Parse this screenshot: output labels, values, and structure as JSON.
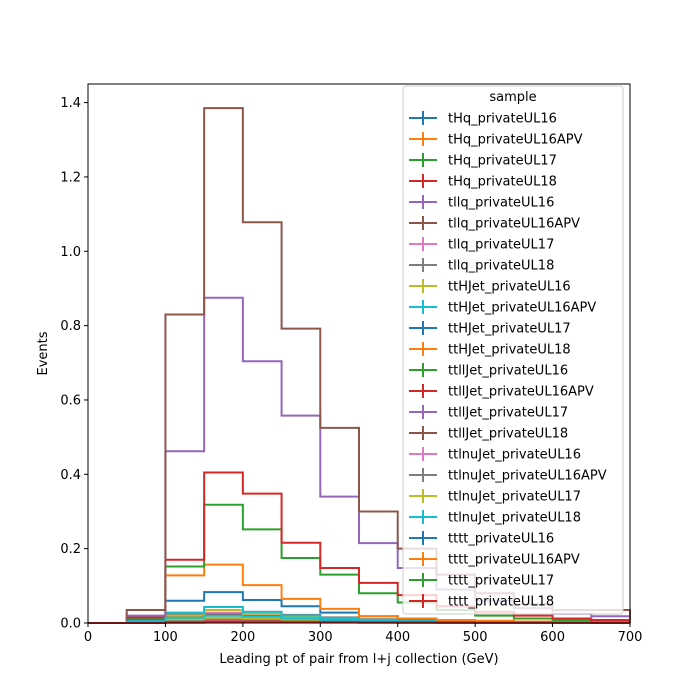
{
  "chart_data": {
    "type": "step-histogram",
    "xlabel": "Leading pt of pair from l+j collection (GeV)",
    "ylabel": "Events",
    "xlim": [
      0,
      700
    ],
    "ylim": [
      0,
      1.45
    ],
    "x_ticks": [
      "0",
      "100",
      "200",
      "300",
      "400",
      "500",
      "600",
      "700"
    ],
    "y_ticks": [
      "0.0",
      "0.2",
      "0.4",
      "0.6",
      "0.8",
      "1.0",
      "1.2",
      "1.4"
    ],
    "bin_edges": [
      0,
      50,
      100,
      150,
      200,
      250,
      300,
      350,
      400,
      450,
      500,
      550,
      600,
      650,
      700
    ],
    "legend_title": "sample",
    "legend_placement": "top-right",
    "series": [
      {
        "name": "tHq_privateUL16",
        "color": "#1f77b4",
        "values": [
          0,
          0.002,
          0.004,
          0.006,
          0.005,
          0.004,
          0.003,
          0.002,
          0.001,
          0.001,
          0.001,
          0.001,
          0,
          0
        ]
      },
      {
        "name": "tHq_privateUL16APV",
        "color": "#ff7f0e",
        "values": [
          0,
          0.002,
          0.004,
          0.006,
          0.005,
          0.004,
          0.003,
          0.002,
          0.001,
          0.001,
          0.001,
          0.001,
          0,
          0
        ]
      },
      {
        "name": "tHq_privateUL17",
        "color": "#2ca02c",
        "values": [
          0,
          0.003,
          0.006,
          0.009,
          0.008,
          0.006,
          0.004,
          0.003,
          0.002,
          0.001,
          0.001,
          0.001,
          0,
          0
        ]
      },
      {
        "name": "tHq_privateUL18",
        "color": "#d62728",
        "values": [
          0,
          0.004,
          0.008,
          0.012,
          0.01,
          0.008,
          0.006,
          0.004,
          0.003,
          0.002,
          0.001,
          0.001,
          0,
          0
        ]
      },
      {
        "name": "tllq_privateUL16",
        "color": "#9467bd",
        "values": [
          0,
          0.008,
          0.015,
          0.02,
          0.017,
          0.012,
          0.009,
          0.006,
          0.004,
          0.003,
          0.002,
          0.002,
          0.001,
          0.001
        ]
      },
      {
        "name": "tllq_privateUL16APV",
        "color": "#8c564b",
        "values": [
          0,
          0.01,
          0.018,
          0.024,
          0.02,
          0.015,
          0.01,
          0.007,
          0.005,
          0.004,
          0.003,
          0.002,
          0.001,
          0.001
        ]
      },
      {
        "name": "tllq_privateUL17",
        "color": "#e377c2",
        "values": [
          0,
          0.012,
          0.02,
          0.028,
          0.024,
          0.018,
          0.012,
          0.008,
          0.006,
          0.004,
          0.003,
          0.002,
          0.001,
          0.001
        ]
      },
      {
        "name": "tllq_privateUL18",
        "color": "#7f7f7f",
        "values": [
          0,
          0.018,
          0.025,
          0.035,
          0.03,
          0.022,
          0.015,
          0.01,
          0.008,
          0.006,
          0.004,
          0.003,
          0.002,
          0.002
        ]
      },
      {
        "name": "ttHJet_privateUL16",
        "color": "#bcbd22",
        "values": [
          0,
          0.005,
          0.02,
          0.035,
          0.025,
          0.015,
          0.01,
          0.006,
          0.004,
          0.003,
          0.002,
          0.001,
          0.001,
          0.001
        ]
      },
      {
        "name": "ttHJet_privateUL16APV",
        "color": "#17becf",
        "values": [
          0,
          0.006,
          0.028,
          0.043,
          0.03,
          0.02,
          0.013,
          0.008,
          0.005,
          0.003,
          0.002,
          0.002,
          0.001,
          0.001
        ]
      },
      {
        "name": "ttHJet_privateUL17",
        "color": "#1f77b4",
        "values": [
          0,
          0.01,
          0.06,
          0.083,
          0.062,
          0.045,
          0.028,
          0.018,
          0.011,
          0.007,
          0.005,
          0.003,
          0.002,
          0.002
        ]
      },
      {
        "name": "ttHJet_privateUL18",
        "color": "#ff7f0e",
        "values": [
          0,
          0.015,
          0.128,
          0.157,
          0.102,
          0.065,
          0.038,
          0.018,
          0.012,
          0.008,
          0.006,
          0.004,
          0.003,
          0.002
        ]
      },
      {
        "name": "ttllJet_privateUL16",
        "color": "#2ca02c",
        "values": [
          0,
          0.012,
          0.152,
          0.318,
          0.252,
          0.175,
          0.13,
          0.08,
          0.055,
          0.035,
          0.02,
          0.012,
          0.008,
          0.006
        ]
      },
      {
        "name": "ttllJet_privateUL16APV",
        "color": "#d62728",
        "values": [
          0,
          0.015,
          0.17,
          0.405,
          0.348,
          0.216,
          0.148,
          0.108,
          0.075,
          0.045,
          0.03,
          0.02,
          0.012,
          0.008
        ]
      },
      {
        "name": "ttllJet_privateUL17",
        "color": "#9467bd",
        "values": [
          0,
          0.02,
          0.462,
          0.875,
          0.704,
          0.558,
          0.34,
          0.215,
          0.148,
          0.09,
          0.06,
          0.04,
          0.025,
          0.018
        ]
      },
      {
        "name": "ttllJet_privateUL18",
        "color": "#8c564b",
        "values": [
          0,
          0.035,
          0.83,
          1.385,
          1.078,
          0.792,
          0.525,
          0.3,
          0.2,
          0.13,
          0.08,
          0.05,
          0.035,
          0.035
        ]
      },
      {
        "name": "ttlnuJet_privateUL16",
        "color": "#e377c2",
        "values": [
          0,
          0.002,
          0.006,
          0.009,
          0.008,
          0.006,
          0.004,
          0.003,
          0.002,
          0.001,
          0.001,
          0.001,
          0,
          0
        ]
      },
      {
        "name": "ttlnuJet_privateUL16APV",
        "color": "#7f7f7f",
        "values": [
          0,
          0.002,
          0.007,
          0.01,
          0.009,
          0.007,
          0.005,
          0.003,
          0.002,
          0.001,
          0.001,
          0.001,
          0,
          0
        ]
      },
      {
        "name": "ttlnuJet_privateUL17",
        "color": "#bcbd22",
        "values": [
          0,
          0.003,
          0.01,
          0.014,
          0.012,
          0.009,
          0.006,
          0.004,
          0.003,
          0.002,
          0.001,
          0.001,
          0.001,
          0
        ]
      },
      {
        "name": "ttlnuJet_privateUL18",
        "color": "#17becf",
        "values": [
          0,
          0.004,
          0.014,
          0.02,
          0.017,
          0.012,
          0.008,
          0.005,
          0.004,
          0.002,
          0.002,
          0.001,
          0.001,
          0
        ]
      },
      {
        "name": "tttt_privateUL16",
        "color": "#1f77b4",
        "values": [
          0,
          0,
          0.001,
          0.002,
          0.002,
          0.002,
          0.002,
          0.001,
          0.001,
          0.001,
          0.001,
          0.001,
          0.001,
          0
        ]
      },
      {
        "name": "tttt_privateUL16APV",
        "color": "#ff7f0e",
        "values": [
          0,
          0,
          0.001,
          0.002,
          0.002,
          0.002,
          0.002,
          0.001,
          0.001,
          0.001,
          0.001,
          0.001,
          0.001,
          0
        ]
      },
      {
        "name": "tttt_privateUL17",
        "color": "#2ca02c",
        "values": [
          0,
          0,
          0.002,
          0.003,
          0.003,
          0.003,
          0.002,
          0.002,
          0.002,
          0.001,
          0.001,
          0.001,
          0.001,
          0
        ]
      },
      {
        "name": "tttt_privateUL18",
        "color": "#d62728",
        "values": [
          0,
          0,
          0.002,
          0.004,
          0.004,
          0.003,
          0.003,
          0.002,
          0.002,
          0.002,
          0.001,
          0.001,
          0.001,
          0
        ]
      }
    ]
  }
}
